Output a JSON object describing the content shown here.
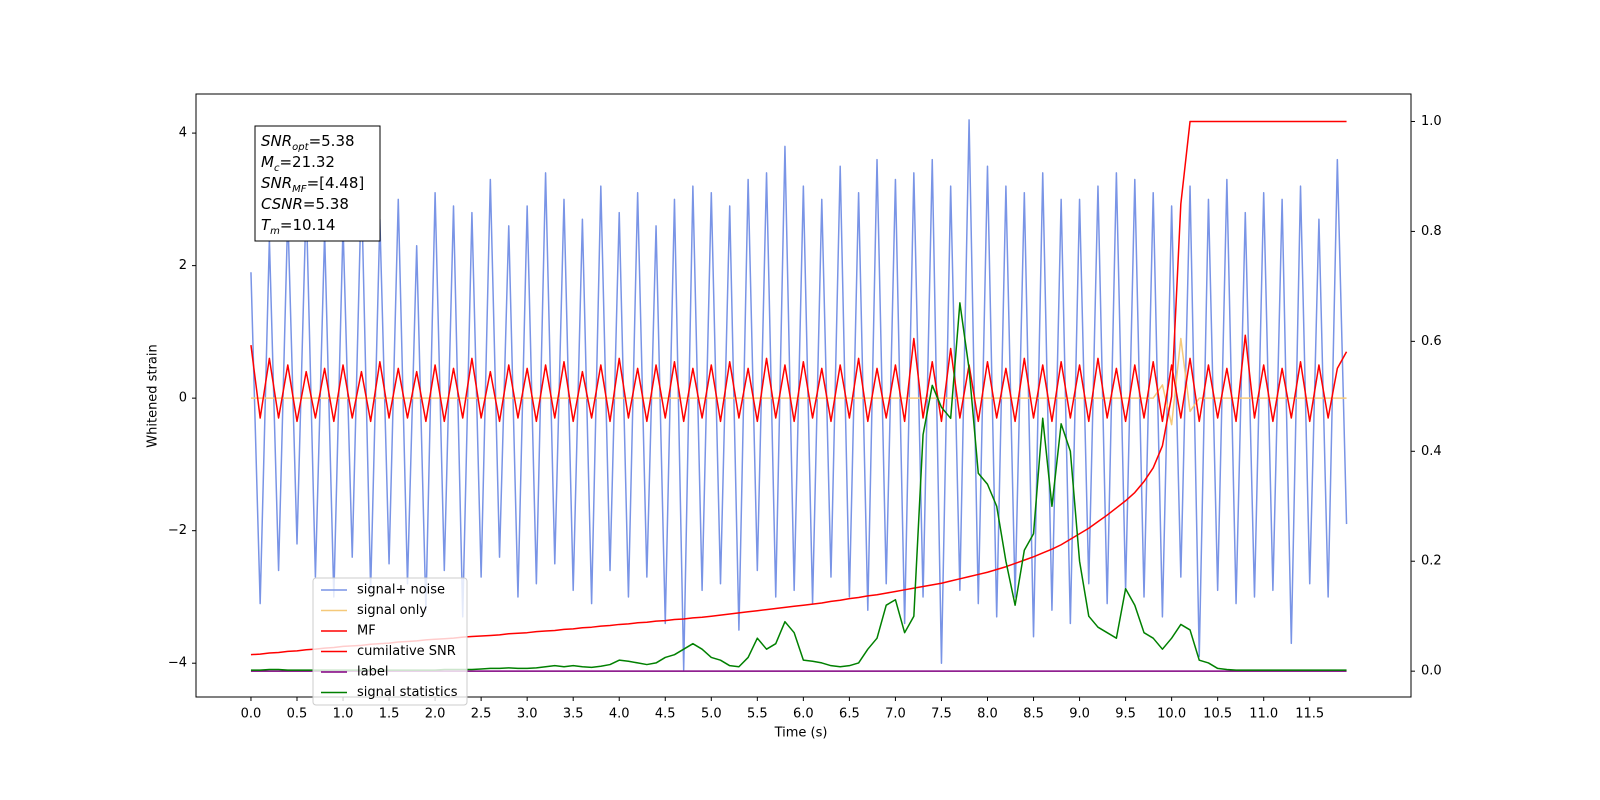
{
  "chart_data": {
    "type": "line",
    "x_label": "Time (s)",
    "y_label": "Whitened strain",
    "xlim": [
      -0.597,
      12.6
    ],
    "ylim": [
      -4.51,
      4.59
    ],
    "y2lim": [
      -0.047,
      1.05
    ],
    "xticks": [
      {
        "value": 0,
        "label": "0.0"
      },
      0.5,
      {
        "value": 1,
        "label": "1.0"
      },
      1.5,
      {
        "value": 2,
        "label": "2.0"
      },
      2.5,
      {
        "value": 3,
        "label": "3.0"
      },
      3.5,
      {
        "value": 4,
        "label": "4.0"
      },
      4.5,
      {
        "value": 5,
        "label": "5.0"
      },
      5.5,
      {
        "value": 6,
        "label": "6.0"
      },
      6.5,
      {
        "value": 7,
        "label": "7.0"
      },
      7.5,
      {
        "value": 8,
        "label": "8.0"
      },
      8.5,
      {
        "value": 9,
        "label": "9.0"
      },
      9.5,
      {
        "value": 10,
        "label": "10.0"
      },
      10.5,
      {
        "value": 11,
        "label": "11.0"
      },
      11.5
    ],
    "yticks": [
      {
        "value": -4,
        "label": "−4"
      },
      {
        "value": -2,
        "label": "−2"
      },
      0,
      2,
      4
    ],
    "y2ticks": [
      {
        "value": 0,
        "label": "0.0"
      },
      0.2,
      0.4,
      0.6,
      0.8,
      {
        "value": 1,
        "label": "1.0"
      }
    ],
    "legend": "lower left",
    "annotations": [
      {
        "symbol": "SNR",
        "subscript": "opt",
        "text": "=5.38"
      },
      {
        "symbol": "M",
        "subscript": "c",
        "text": "=21.32"
      },
      {
        "symbol": "SNR",
        "subscript": "MF",
        "text": "=[4.48]"
      },
      {
        "symbol": "CSNR",
        "text": "=5.38"
      },
      {
        "symbol": "T",
        "subscript": "m",
        "text": "=10.14"
      }
    ],
    "x": [
      0,
      0.1,
      0.2,
      0.3,
      0.4,
      0.5,
      0.6,
      0.7,
      0.8,
      0.9,
      1,
      1.1,
      1.2,
      1.3,
      1.4,
      1.5,
      1.6,
      1.7,
      1.8,
      1.9,
      2,
      2.1,
      2.2,
      2.3,
      2.4,
      2.5,
      2.6,
      2.7,
      2.8,
      2.9,
      3,
      3.1,
      3.2,
      3.3,
      3.4,
      3.5,
      3.6,
      3.7,
      3.8,
      3.9,
      4,
      4.1,
      4.2,
      4.3,
      4.4,
      4.5,
      4.6,
      4.7,
      4.8,
      4.9,
      5,
      5.1,
      5.2,
      5.3,
      5.4,
      5.5,
      5.6,
      5.7,
      5.8,
      5.9,
      6,
      6.1,
      6.2,
      6.3,
      6.4,
      6.5,
      6.6,
      6.7,
      6.8,
      6.9,
      7,
      7.1,
      7.2,
      7.3,
      7.4,
      7.5,
      7.6,
      7.7,
      7.8,
      7.9,
      8,
      8.1,
      8.2,
      8.3,
      8.4,
      8.5,
      8.6,
      8.7,
      8.8,
      8.9,
      9,
      9.1,
      9.2,
      9.3,
      9.4,
      9.5,
      9.6,
      9.7,
      9.8,
      9.9,
      10,
      10.1,
      10.2,
      10.3,
      10.4,
      10.5,
      10.6,
      10.7,
      10.8,
      10.9,
      11,
      11.1,
      11.2,
      11.3,
      11.4,
      11.5,
      11.6,
      11.7,
      11.8,
      11.9
    ],
    "series": [
      {
        "name": "signal+ noise",
        "color": "#7994e6",
        "values": [
          1.9,
          -3.1,
          2.4,
          -2.6,
          2.8,
          -2.2,
          3.0,
          -2.7,
          2.5,
          -3.0,
          2.6,
          -2.4,
          3.2,
          -2.9,
          2.7,
          -2.5,
          3.0,
          -2.8,
          2.3,
          -3.2,
          3.1,
          -2.6,
          2.9,
          -3.3,
          2.8,
          -2.7,
          3.3,
          -2.4,
          2.6,
          -3.0,
          2.9,
          -2.8,
          3.4,
          -2.5,
          3.0,
          -2.9,
          2.7,
          -3.1,
          3.2,
          -2.6,
          2.8,
          -3.0,
          3.1,
          -2.7,
          2.6,
          -3.4,
          3.0,
          -4.1,
          3.2,
          -2.9,
          3.1,
          -2.8,
          2.9,
          -3.5,
          3.3,
          -2.6,
          3.4,
          -3.0,
          3.8,
          -2.9,
          3.2,
          -3.1,
          3.0,
          -2.7,
          3.5,
          -3.0,
          3.1,
          -3.2,
          3.6,
          -2.8,
          3.3,
          -3.4,
          3.4,
          -3.0,
          3.6,
          -4.0,
          3.2,
          -2.9,
          4.2,
          -3.1,
          3.5,
          -3.3,
          3.2,
          -3.0,
          3.1,
          -3.6,
          3.4,
          -3.2,
          3.0,
          -3.4,
          3.0,
          -2.8,
          3.2,
          -3.1,
          3.4,
          -2.9,
          3.3,
          -3.0,
          3.1,
          -3.3,
          2.9,
          -2.7,
          3.2,
          -3.9,
          3.0,
          -2.9,
          3.3,
          -3.1,
          2.8,
          -3.0,
          3.1,
          -2.9,
          3.0,
          -3.7,
          3.2,
          -2.8,
          2.7,
          -3.0,
          3.6,
          -1.9
        ]
      },
      {
        "name": "signal only",
        "color": "#f5c97a",
        "values": [
          0,
          0,
          0,
          0,
          0,
          0,
          0,
          0,
          0,
          0,
          0,
          0,
          0,
          0,
          0,
          0,
          0,
          0,
          0,
          0,
          0,
          0,
          0,
          0,
          0,
          0,
          0,
          0,
          0,
          0,
          0,
          0,
          0,
          0,
          0,
          0,
          0,
          0,
          0,
          0,
          0,
          0,
          0,
          0,
          0,
          0,
          0,
          0,
          0,
          0,
          0,
          0,
          0,
          0,
          0,
          0,
          0,
          0,
          0,
          0,
          0,
          0,
          0,
          0,
          0,
          0,
          0,
          0,
          0,
          0,
          0,
          0,
          0,
          0,
          0,
          0,
          0,
          0,
          0,
          0,
          0,
          0,
          0,
          0,
          0,
          0,
          0,
          0,
          0,
          0,
          0,
          0,
          0,
          0,
          0,
          0,
          0,
          0,
          0,
          0.2,
          -0.4,
          0.9,
          -0.2,
          0,
          0,
          0,
          0,
          0,
          0,
          0,
          0,
          0,
          0,
          0,
          0,
          0,
          0,
          0,
          0,
          0
        ]
      },
      {
        "name": "MF",
        "color": "#ff0000",
        "values": [
          0.8,
          -0.3,
          0.6,
          -0.3,
          0.5,
          -0.35,
          0.4,
          -0.3,
          0.45,
          -0.35,
          0.5,
          -0.3,
          0.4,
          -0.35,
          0.55,
          -0.3,
          0.45,
          -0.3,
          0.4,
          -0.35,
          0.5,
          -0.35,
          0.45,
          -0.3,
          0.6,
          -0.3,
          0.4,
          -0.35,
          0.5,
          -0.3,
          0.45,
          -0.35,
          0.5,
          -0.3,
          0.55,
          -0.35,
          0.4,
          -0.3,
          0.5,
          -0.35,
          0.6,
          -0.3,
          0.45,
          -0.35,
          0.5,
          -0.3,
          0.55,
          -0.35,
          0.45,
          -0.3,
          0.5,
          -0.35,
          0.55,
          -0.3,
          0.45,
          -0.35,
          0.6,
          -0.3,
          0.5,
          -0.35,
          0.55,
          -0.3,
          0.45,
          -0.35,
          0.5,
          -0.3,
          0.6,
          -0.35,
          0.45,
          -0.3,
          0.5,
          -0.35,
          0.9,
          -0.3,
          0.55,
          -0.35,
          0.75,
          -0.3,
          0.5,
          -0.35,
          0.55,
          -0.3,
          0.45,
          -0.35,
          0.6,
          -0.3,
          0.5,
          -0.35,
          0.55,
          -0.3,
          0.5,
          -0.35,
          0.6,
          -0.3,
          0.45,
          -0.35,
          0.5,
          -0.3,
          0.55,
          -0.35,
          0.5,
          -0.3,
          0.6,
          -0.35,
          0.5,
          -0.3,
          0.45,
          -0.35,
          0.95,
          -0.3,
          0.5,
          -0.35,
          0.45,
          -0.3,
          0.55,
          -0.35,
          0.5,
          -0.3,
          0.45,
          0.7
        ]
      },
      {
        "name": "cumilative SNR",
        "color": "#ff0000",
        "axis": "y2",
        "values": [
          0.03,
          0.031,
          0.033,
          0.034,
          0.036,
          0.037,
          0.039,
          0.04,
          0.042,
          0.043,
          0.045,
          0.046,
          0.047,
          0.049,
          0.05,
          0.051,
          0.053,
          0.054,
          0.055,
          0.057,
          0.058,
          0.059,
          0.06,
          0.062,
          0.063,
          0.064,
          0.065,
          0.066,
          0.068,
          0.069,
          0.07,
          0.072,
          0.073,
          0.074,
          0.076,
          0.077,
          0.079,
          0.08,
          0.082,
          0.083,
          0.085,
          0.086,
          0.088,
          0.089,
          0.091,
          0.092,
          0.094,
          0.095,
          0.097,
          0.098,
          0.1,
          0.102,
          0.104,
          0.106,
          0.108,
          0.11,
          0.112,
          0.114,
          0.116,
          0.118,
          0.12,
          0.122,
          0.124,
          0.127,
          0.129,
          0.132,
          0.134,
          0.137,
          0.139,
          0.142,
          0.145,
          0.148,
          0.151,
          0.154,
          0.157,
          0.16,
          0.164,
          0.168,
          0.172,
          0.176,
          0.18,
          0.185,
          0.19,
          0.196,
          0.202,
          0.208,
          0.215,
          0.222,
          0.23,
          0.24,
          0.25,
          0.26,
          0.272,
          0.284,
          0.297,
          0.31,
          0.325,
          0.345,
          0.37,
          0.41,
          0.5,
          0.85,
          1,
          1,
          1,
          1,
          1,
          1,
          1,
          1,
          1,
          1,
          1,
          1,
          1,
          1,
          1,
          1,
          1,
          1
        ]
      },
      {
        "name": "label",
        "color": "#800080",
        "axis": "y2",
        "values": [
          0,
          0,
          0,
          0,
          0,
          0,
          0,
          0,
          0,
          0,
          0,
          0,
          0,
          0,
          0,
          0,
          0,
          0,
          0,
          0,
          0,
          0,
          0,
          0,
          0,
          0,
          0,
          0,
          0,
          0,
          0,
          0,
          0,
          0,
          0,
          0,
          0,
          0,
          0,
          0,
          0,
          0,
          0,
          0,
          0,
          0,
          0,
          0,
          0,
          0,
          0,
          0,
          0,
          0,
          0,
          0,
          0,
          0,
          0,
          0,
          0,
          0,
          0,
          0,
          0,
          0,
          0,
          0,
          0,
          0,
          0,
          0,
          0,
          0,
          0,
          0,
          0,
          0,
          0,
          0,
          0,
          0,
          0,
          0,
          0,
          0,
          0,
          0,
          0,
          0,
          0,
          0,
          0,
          0,
          0,
          0,
          0,
          0,
          0,
          0,
          0,
          0,
          0,
          0,
          0,
          0,
          0,
          0,
          0,
          0,
          0,
          0,
          0,
          0,
          0,
          0,
          0,
          0,
          0,
          0
        ]
      },
      {
        "name": "signal statistics",
        "color": "#008000",
        "axis": "y2",
        "values": [
          0.002,
          0.002,
          0.003,
          0.003,
          0.002,
          0.002,
          0.002,
          0.002,
          0.002,
          0.002,
          0.002,
          0.002,
          0.002,
          0.002,
          0.002,
          0.002,
          0.002,
          0.002,
          0.002,
          0.002,
          0.002,
          0.003,
          0.003,
          0.003,
          0.003,
          0.004,
          0.005,
          0.005,
          0.006,
          0.005,
          0.005,
          0.006,
          0.008,
          0.01,
          0.008,
          0.01,
          0.008,
          0.007,
          0.009,
          0.012,
          0.02,
          0.018,
          0.015,
          0.012,
          0.015,
          0.025,
          0.03,
          0.04,
          0.05,
          0.04,
          0.025,
          0.02,
          0.01,
          0.008,
          0.025,
          0.06,
          0.04,
          0.05,
          0.09,
          0.07,
          0.02,
          0.018,
          0.015,
          0.01,
          0.008,
          0.01,
          0.015,
          0.04,
          0.06,
          0.12,
          0.13,
          0.07,
          0.1,
          0.43,
          0.52,
          0.48,
          0.46,
          0.67,
          0.55,
          0.36,
          0.34,
          0.3,
          0.2,
          0.12,
          0.22,
          0.25,
          0.46,
          0.3,
          0.45,
          0.4,
          0.2,
          0.1,
          0.08,
          0.07,
          0.06,
          0.15,
          0.12,
          0.07,
          0.06,
          0.04,
          0.06,
          0.085,
          0.075,
          0.02,
          0.015,
          0.005,
          0.003,
          0.002,
          0.002,
          0.002,
          0.002,
          0.002,
          0.002,
          0.002,
          0.002,
          0.002,
          0.002,
          0.002,
          0.002,
          0.002
        ]
      }
    ]
  }
}
